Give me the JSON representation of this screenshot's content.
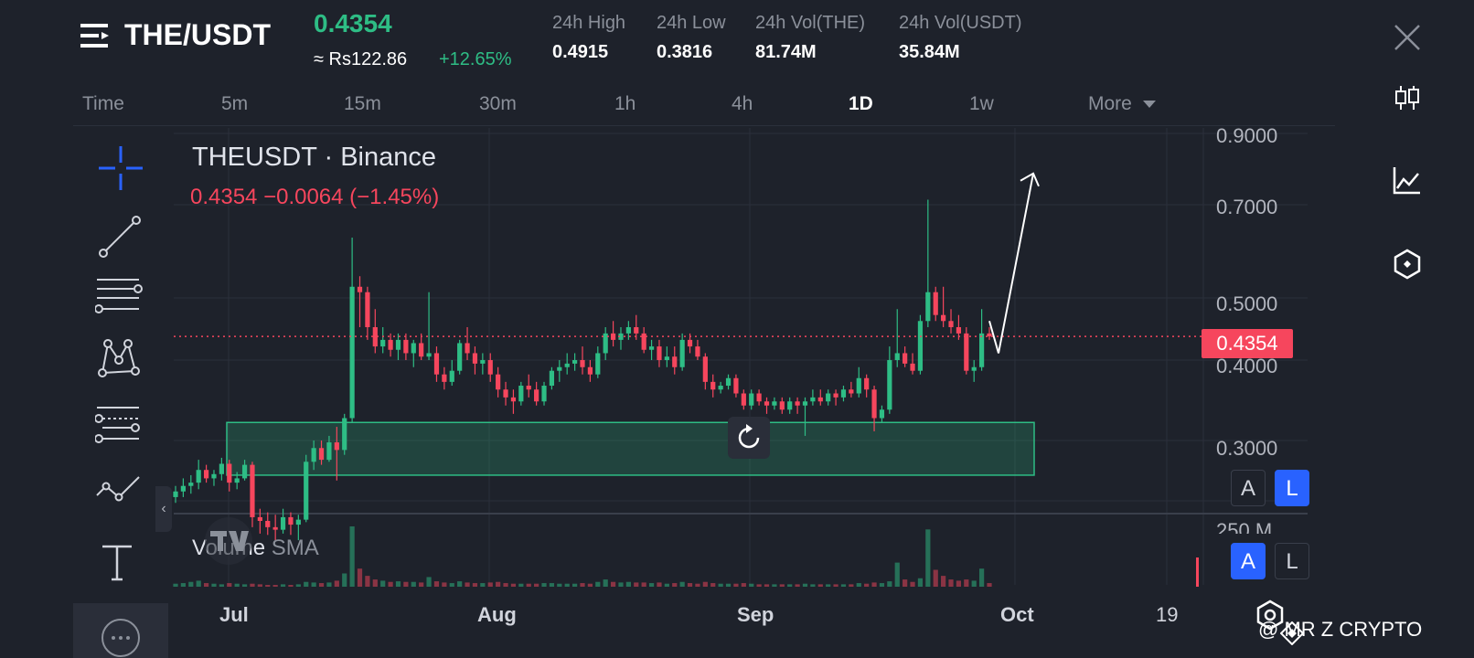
{
  "header": {
    "pair": "THE/USDT",
    "last_price": "0.4354",
    "fiat_price": "≈ Rs122.86",
    "change_pct": "+12.65%",
    "stats": [
      {
        "label": "24h High",
        "value": "0.4915"
      },
      {
        "label": "24h Low",
        "value": "0.3816"
      },
      {
        "label": "24h Vol(THE)",
        "value": "81.74M"
      },
      {
        "label": "24h Vol(USDT)",
        "value": "35.84M"
      }
    ]
  },
  "timeframes": {
    "time_label": "Time",
    "items": [
      "5m",
      "15m",
      "30m",
      "1h",
      "4h",
      "1D",
      "1w"
    ],
    "active": "1D",
    "more_label": "More"
  },
  "chart": {
    "symbol_title": "THEUSDT · Binance",
    "symbol_change": "0.4354  −0.0064 (−1.45%)",
    "price_tag": "0.4354",
    "volume_label": "Volume",
    "volume_sma_label": "SMA",
    "volume_tick": "250 M",
    "auto_btn": "A",
    "log_btn": "L",
    "watermark": "@ MR Z CRYPTO"
  },
  "chart_data": {
    "type": "candlestick",
    "y_axis_ticks": [
      "0.9000",
      "0.7000",
      "0.5000",
      "0.4000",
      "0.3000"
    ],
    "x_axis_ticks": [
      "Jul",
      "Aug",
      "Sep",
      "Oct",
      "19"
    ],
    "ylim": [
      0.22,
      0.95
    ],
    "current_price": 0.4354,
    "support_zone": {
      "from": 0.265,
      "to": 0.32
    },
    "projection_target": 0.78,
    "candles": [
      [
        0.245,
        0.255,
        0.24,
        0.25
      ],
      [
        0.25,
        0.262,
        0.245,
        0.255
      ],
      [
        0.255,
        0.265,
        0.248,
        0.258
      ],
      [
        0.258,
        0.28,
        0.252,
        0.27
      ],
      [
        0.27,
        0.275,
        0.258,
        0.262
      ],
      [
        0.262,
        0.27,
        0.255,
        0.266
      ],
      [
        0.266,
        0.282,
        0.26,
        0.276
      ],
      [
        0.276,
        0.28,
        0.25,
        0.258
      ],
      [
        0.258,
        0.268,
        0.252,
        0.262
      ],
      [
        0.262,
        0.28,
        0.26,
        0.275
      ],
      [
        0.275,
        0.278,
        0.22,
        0.228
      ],
      [
        0.228,
        0.235,
        0.215,
        0.225
      ],
      [
        0.225,
        0.232,
        0.214,
        0.22
      ],
      [
        0.22,
        0.23,
        0.21,
        0.218
      ],
      [
        0.218,
        0.235,
        0.215,
        0.228
      ],
      [
        0.228,
        0.232,
        0.214,
        0.222
      ],
      [
        0.222,
        0.23,
        0.21,
        0.226
      ],
      [
        0.226,
        0.285,
        0.224,
        0.278
      ],
      [
        0.278,
        0.3,
        0.27,
        0.292
      ],
      [
        0.292,
        0.3,
        0.275,
        0.28
      ],
      [
        0.28,
        0.305,
        0.278,
        0.298
      ],
      [
        0.298,
        0.315,
        0.26,
        0.29
      ],
      [
        0.29,
        0.33,
        0.285,
        0.325
      ],
      [
        0.325,
        0.62,
        0.32,
        0.52
      ],
      [
        0.52,
        0.54,
        0.45,
        0.51
      ],
      [
        0.51,
        0.52,
        0.43,
        0.45
      ],
      [
        0.45,
        0.48,
        0.41,
        0.42
      ],
      [
        0.42,
        0.45,
        0.41,
        0.43
      ],
      [
        0.43,
        0.44,
        0.405,
        0.415
      ],
      [
        0.415,
        0.44,
        0.4,
        0.43
      ],
      [
        0.43,
        0.44,
        0.4,
        0.41
      ],
      [
        0.41,
        0.43,
        0.39,
        0.425
      ],
      [
        0.425,
        0.44,
        0.4,
        0.405
      ],
      [
        0.405,
        0.51,
        0.4,
        0.41
      ],
      [
        0.41,
        0.42,
        0.37,
        0.38
      ],
      [
        0.38,
        0.39,
        0.36,
        0.37
      ],
      [
        0.37,
        0.4,
        0.365,
        0.385
      ],
      [
        0.385,
        0.43,
        0.38,
        0.425
      ],
      [
        0.425,
        0.45,
        0.4,
        0.41
      ],
      [
        0.41,
        0.42,
        0.38,
        0.395
      ],
      [
        0.395,
        0.41,
        0.38,
        0.4
      ],
      [
        0.4,
        0.41,
        0.37,
        0.38
      ],
      [
        0.38,
        0.39,
        0.35,
        0.36
      ],
      [
        0.36,
        0.37,
        0.34,
        0.35
      ],
      [
        0.35,
        0.36,
        0.33,
        0.345
      ],
      [
        0.345,
        0.37,
        0.34,
        0.365
      ],
      [
        0.365,
        0.38,
        0.35,
        0.36
      ],
      [
        0.36,
        0.37,
        0.34,
        0.345
      ],
      [
        0.345,
        0.37,
        0.34,
        0.365
      ],
      [
        0.365,
        0.39,
        0.36,
        0.385
      ],
      [
        0.385,
        0.4,
        0.37,
        0.39
      ],
      [
        0.39,
        0.41,
        0.38,
        0.395
      ],
      [
        0.395,
        0.41,
        0.385,
        0.4
      ],
      [
        0.4,
        0.42,
        0.38,
        0.39
      ],
      [
        0.39,
        0.4,
        0.37,
        0.38
      ],
      [
        0.38,
        0.42,
        0.375,
        0.41
      ],
      [
        0.41,
        0.45,
        0.4,
        0.44
      ],
      [
        0.44,
        0.46,
        0.42,
        0.43
      ],
      [
        0.43,
        0.45,
        0.415,
        0.44
      ],
      [
        0.44,
        0.46,
        0.43,
        0.45
      ],
      [
        0.45,
        0.47,
        0.43,
        0.44
      ],
      [
        0.44,
        0.45,
        0.41,
        0.415
      ],
      [
        0.415,
        0.43,
        0.4,
        0.42
      ],
      [
        0.42,
        0.43,
        0.39,
        0.4
      ],
      [
        0.4,
        0.42,
        0.39,
        0.405
      ],
      [
        0.405,
        0.42,
        0.38,
        0.39
      ],
      [
        0.39,
        0.44,
        0.385,
        0.43
      ],
      [
        0.43,
        0.44,
        0.41,
        0.42
      ],
      [
        0.42,
        0.43,
        0.4,
        0.405
      ],
      [
        0.405,
        0.41,
        0.36,
        0.37
      ],
      [
        0.37,
        0.38,
        0.35,
        0.36
      ],
      [
        0.36,
        0.37,
        0.355,
        0.365
      ],
      [
        0.365,
        0.38,
        0.36,
        0.375
      ],
      [
        0.375,
        0.38,
        0.35,
        0.355
      ],
      [
        0.355,
        0.36,
        0.335,
        0.34
      ],
      [
        0.34,
        0.36,
        0.335,
        0.355
      ],
      [
        0.355,
        0.36,
        0.34,
        0.345
      ],
      [
        0.345,
        0.35,
        0.33,
        0.34
      ],
      [
        0.34,
        0.35,
        0.335,
        0.345
      ],
      [
        0.345,
        0.35,
        0.33,
        0.335
      ],
      [
        0.335,
        0.35,
        0.33,
        0.345
      ],
      [
        0.345,
        0.35,
        0.33,
        0.34
      ],
      [
        0.34,
        0.35,
        0.305,
        0.345
      ],
      [
        0.345,
        0.36,
        0.34,
        0.35
      ],
      [
        0.35,
        0.36,
        0.34,
        0.345
      ],
      [
        0.345,
        0.36,
        0.34,
        0.355
      ],
      [
        0.355,
        0.36,
        0.34,
        0.35
      ],
      [
        0.35,
        0.365,
        0.345,
        0.36
      ],
      [
        0.36,
        0.37,
        0.35,
        0.355
      ],
      [
        0.355,
        0.39,
        0.35,
        0.375
      ],
      [
        0.375,
        0.38,
        0.35,
        0.36
      ],
      [
        0.36,
        0.365,
        0.31,
        0.325
      ],
      [
        0.325,
        0.34,
        0.32,
        0.335
      ],
      [
        0.335,
        0.42,
        0.33,
        0.4
      ],
      [
        0.4,
        0.48,
        0.39,
        0.41
      ],
      [
        0.41,
        0.42,
        0.39,
        0.395
      ],
      [
        0.395,
        0.41,
        0.38,
        0.385
      ],
      [
        0.385,
        0.47,
        0.38,
        0.46
      ],
      [
        0.46,
        0.71,
        0.45,
        0.51
      ],
      [
        0.51,
        0.52,
        0.46,
        0.47
      ],
      [
        0.47,
        0.52,
        0.45,
        0.46
      ],
      [
        0.46,
        0.48,
        0.44,
        0.45
      ],
      [
        0.45,
        0.47,
        0.43,
        0.44
      ],
      [
        0.44,
        0.45,
        0.38,
        0.385
      ],
      [
        0.385,
        0.4,
        0.37,
        0.39
      ],
      [
        0.39,
        0.48,
        0.385,
        0.44
      ],
      [
        0.44,
        0.45,
        0.43,
        0.4354
      ]
    ],
    "volume_bars_rel": [
      0.05,
      0.06,
      0.08,
      0.1,
      0.06,
      0.05,
      0.04,
      0.06,
      0.05,
      0.04,
      0.05,
      0.04,
      0.03,
      0.03,
      0.04,
      0.03,
      0.04,
      0.08,
      0.07,
      0.06,
      0.07,
      0.1,
      0.22,
      1.0,
      0.3,
      0.18,
      0.12,
      0.1,
      0.08,
      0.09,
      0.08,
      0.08,
      0.07,
      0.16,
      0.09,
      0.07,
      0.06,
      0.09,
      0.07,
      0.06,
      0.06,
      0.07,
      0.08,
      0.06,
      0.05,
      0.05,
      0.05,
      0.05,
      0.06,
      0.06,
      0.05,
      0.05,
      0.05,
      0.06,
      0.05,
      0.08,
      0.12,
      0.08,
      0.07,
      0.08,
      0.07,
      0.07,
      0.06,
      0.07,
      0.05,
      0.06,
      0.08,
      0.06,
      0.05,
      0.08,
      0.06,
      0.05,
      0.05,
      0.05,
      0.06,
      0.05,
      0.04,
      0.04,
      0.04,
      0.04,
      0.04,
      0.04,
      0.05,
      0.04,
      0.04,
      0.04,
      0.04,
      0.04,
      0.04,
      0.06,
      0.05,
      0.07,
      0.06,
      0.09,
      0.4,
      0.12,
      0.08,
      0.14,
      0.95,
      0.28,
      0.18,
      0.12,
      0.1,
      0.12,
      0.1,
      0.3,
      0.06
    ]
  },
  "colors": {
    "background": "#1e222b",
    "up": "#2ebd85",
    "down": "#f6465d",
    "zone_fill": "#2ebd85",
    "grid": "#2b303b",
    "accent_blue": "#2962ff"
  }
}
